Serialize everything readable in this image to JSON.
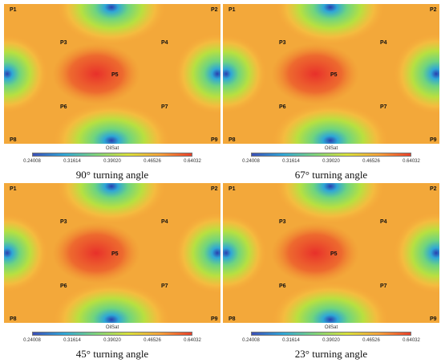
{
  "colorbar": {
    "title": "OilSat",
    "ticks": [
      "0.24008",
      "0.31614",
      "0.39020",
      "0.46526",
      "0.64032"
    ],
    "colors": [
      "#3b4fb8",
      "#2fa7d6",
      "#7fd37a",
      "#d8e03a",
      "#f5a23a",
      "#e8402a"
    ]
  },
  "wells": [
    "P1",
    "P2",
    "P3",
    "P4",
    "P5",
    "P6",
    "P7",
    "P8",
    "P9"
  ],
  "panels": [
    {
      "caption": "90° turning angle"
    },
    {
      "caption": "67° turning angle"
    },
    {
      "caption": "45° turning angle"
    },
    {
      "caption": "23° turning angle"
    }
  ]
}
